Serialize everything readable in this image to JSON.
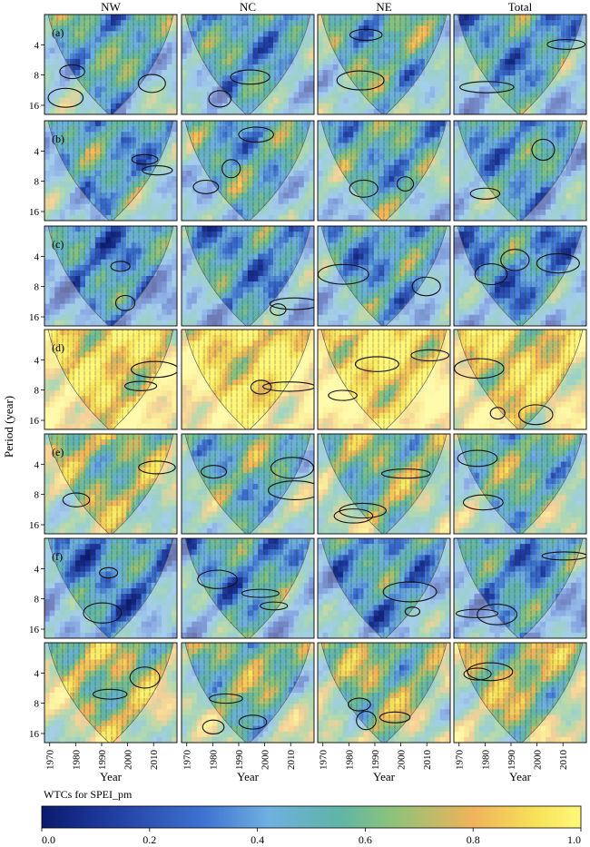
{
  "chart_data": {
    "type": "heatmap",
    "title": "",
    "columns": [
      "NW",
      "NC",
      "NE",
      "Total"
    ],
    "panel_labels": [
      "(a)",
      "(b)",
      "(c)",
      "(d)",
      "(e)",
      "(f)",
      ""
    ],
    "ylabel": "Period (year)",
    "xlabel": "Year",
    "y_ticks": [
      "4",
      "8",
      "16"
    ],
    "x_ticks": [
      "1970",
      "1980",
      "1990",
      "2000",
      "2010"
    ],
    "x_range": [
      1968,
      2019
    ],
    "y_range_log2": [
      1,
      4.3
    ],
    "colorbar": {
      "title": "WTCs for SPEI_pm",
      "ticks": [
        "0.0",
        "0.2",
        "0.4",
        "0.6",
        "0.8",
        "1.0"
      ],
      "range": [
        0,
        1
      ],
      "colors": [
        "#0b1a6e",
        "#1f3a9e",
        "#3e73d1",
        "#6fb0e0",
        "#5fb4a8",
        "#8cc37a",
        "#f0b35a",
        "#f7e35a",
        "#fff77a"
      ]
    },
    "panels_mean_coherence": [
      [
        0.45,
        0.42,
        0.48,
        0.4
      ],
      [
        0.42,
        0.44,
        0.46,
        0.4
      ],
      [
        0.35,
        0.38,
        0.4,
        0.36
      ],
      [
        0.85,
        0.88,
        0.9,
        0.8
      ],
      [
        0.62,
        0.5,
        0.58,
        0.52
      ],
      [
        0.35,
        0.4,
        0.38,
        0.38
      ],
      [
        0.66,
        0.56,
        0.6,
        0.64
      ]
    ]
  }
}
